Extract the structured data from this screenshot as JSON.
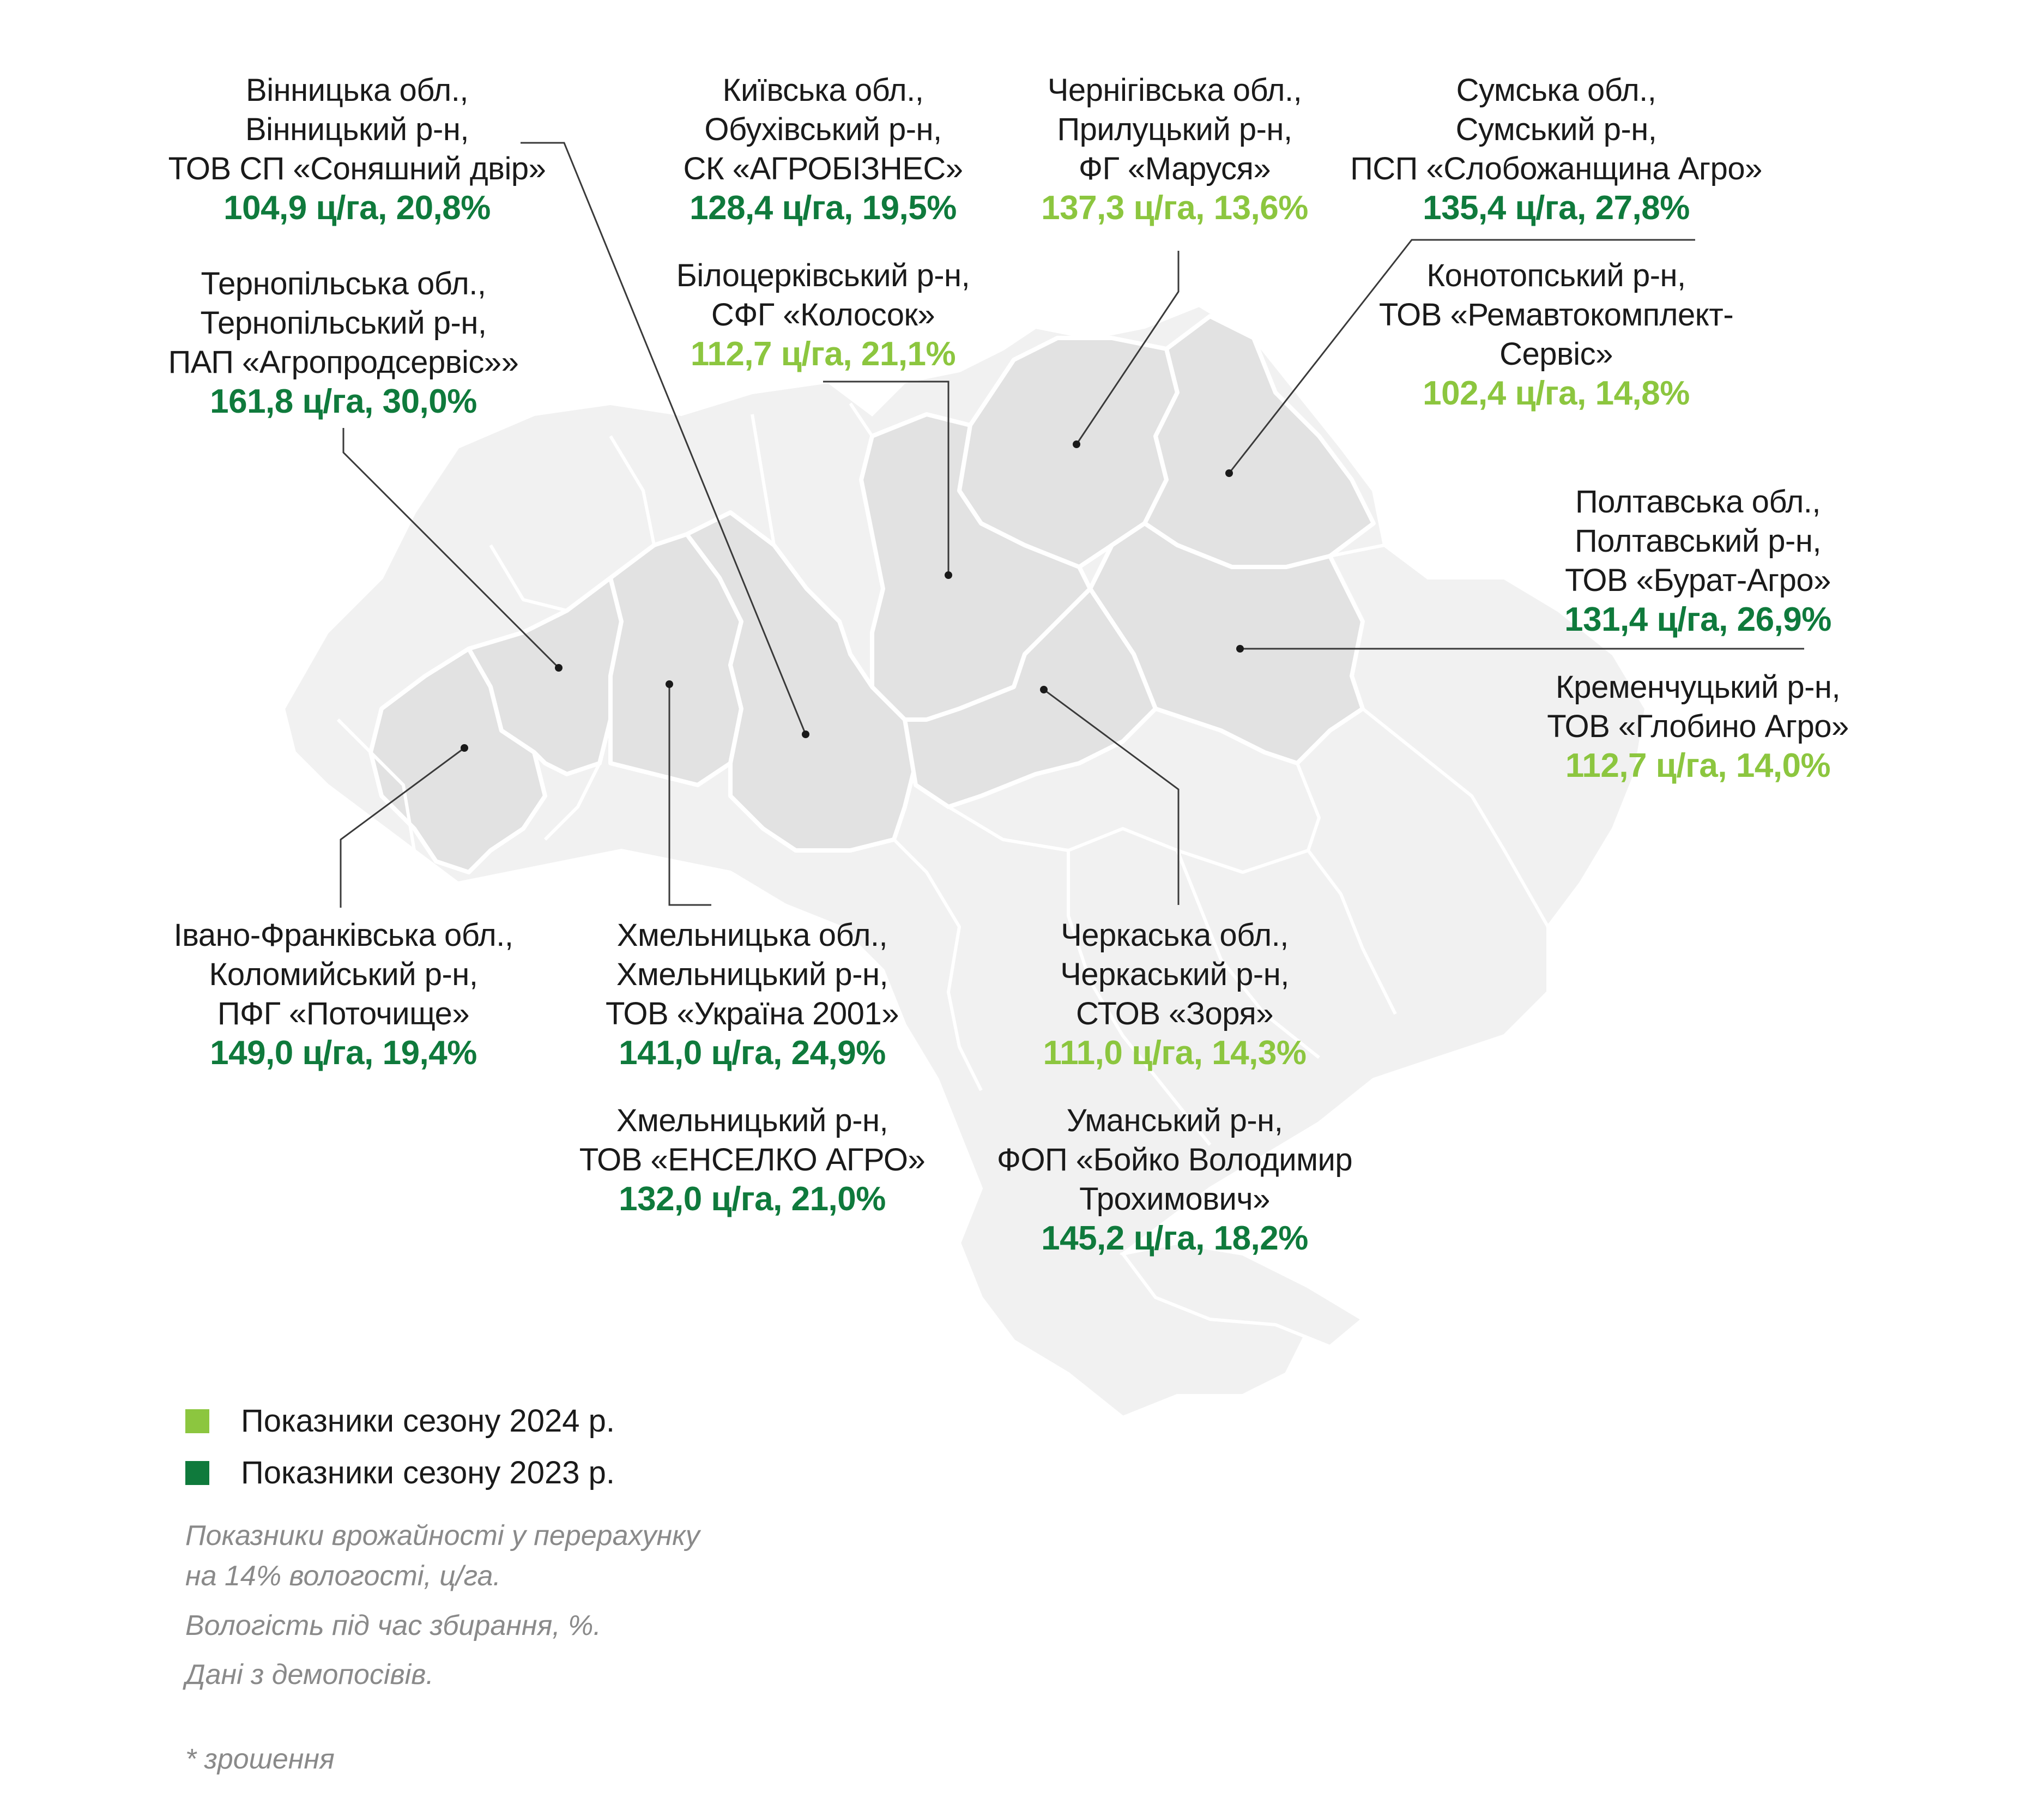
{
  "colors": {
    "season_2024": "#8cc63f",
    "season_2023": "#0f7a3c",
    "region_highlight": "#e2e2e2",
    "region_base": "#f1f1f1",
    "border": "#ffffff",
    "leader": "#3a3a3a"
  },
  "labels": {
    "vinnytsia": {
      "lines": [
        "Вінницька обл.,",
        "Вінницький р-н,",
        "ТОВ СП «Соняшний двір»"
      ],
      "value": "104,9 ц/га, 20,8%",
      "season": "2023"
    },
    "ternopil": {
      "lines": [
        "Тернопільська обл.,",
        "Тернопільський р-н,",
        "ПАП «Агропродсервіс»»"
      ],
      "value": "161,8 ц/га, 30,0%",
      "season": "2023"
    },
    "kyiv": {
      "lines": [
        "Київська обл.,",
        "Обухівський р-н,",
        "СК «АГРОБІЗНЕС»"
      ],
      "value": "128,4 ц/га, 19,5%",
      "season": "2023"
    },
    "bila_tserkva": {
      "lines": [
        "Білоцерківський р-н,",
        "СФГ «Колосок»"
      ],
      "value": "112,7 ц/га, 21,1%",
      "season": "2024"
    },
    "chernihiv": {
      "lines": [
        "Чернігівська обл.,",
        "Прилуцький р-н,",
        "ФГ «Маруся»"
      ],
      "value": "137,3 ц/га, 13,6%",
      "season": "2024"
    },
    "sumy": {
      "lines": [
        "Сумська обл.,",
        "Сумський р-н,",
        "ПСП «Слобожанщина Агро»"
      ],
      "value": "135,4 ц/га, 27,8%",
      "season": "2023"
    },
    "konotop": {
      "lines": [
        "Конотопський р-н,",
        "ТОВ «Ремавтокомплект-",
        "Сервіс»"
      ],
      "value": "102,4 ц/га, 14,8%",
      "season": "2024"
    },
    "poltava": {
      "lines": [
        "Полтавська обл.,",
        "Полтавський р-н,",
        "ТОВ «Бурат-Агро»"
      ],
      "value": "131,4 ц/га, 26,9%",
      "season": "2023"
    },
    "kremenchuk": {
      "lines": [
        "Кременчуцький р-н,",
        "ТОВ «Глобино Агро»"
      ],
      "value": "112,7 ц/га, 14,0%",
      "season": "2024"
    },
    "ivano_frankivsk": {
      "lines": [
        "Івано-Франківська обл.,",
        "Коломийський р-н,",
        "ПФГ «Поточище»"
      ],
      "value": "149,0 ц/га, 19,4%",
      "season": "2023"
    },
    "khmelnytskyi": {
      "lines": [
        "Хмельницька обл.,",
        "Хмельницький р-н,",
        "ТОВ «Україна 2001»"
      ],
      "value": "141,0 ц/га, 24,9%",
      "season": "2023"
    },
    "khmelnytskyi_2": {
      "lines": [
        "Хмельницький р-н,",
        "ТОВ «ЕНСЕЛКО АГРО»"
      ],
      "value": "132,0 ц/га, 21,0%",
      "season": "2023"
    },
    "cherkasy": {
      "lines": [
        "Черкаська обл.,",
        "Черкаський р-н,",
        "СТОВ «Зоря»"
      ],
      "value": "111,0 ц/га, 14,3%",
      "season": "2024"
    },
    "uman": {
      "lines": [
        "Уманський р-н,",
        "ФОП «Бойко Володимир",
        "Трохимович»"
      ],
      "value": "145,2 ц/га, 18,2%",
      "season": "2023"
    }
  },
  "legend": {
    "season_2024": "Показники сезону 2024 р.",
    "season_2023": "Показники сезону 2023 р."
  },
  "notes": {
    "line1": "Показники врожайності у перерахунку",
    "line2": "на 14% вологості, ц/га.",
    "line3": "Вологість під час збирання, %.",
    "line4": "Дані з демопосівів.",
    "footnote": "* зрошення"
  }
}
